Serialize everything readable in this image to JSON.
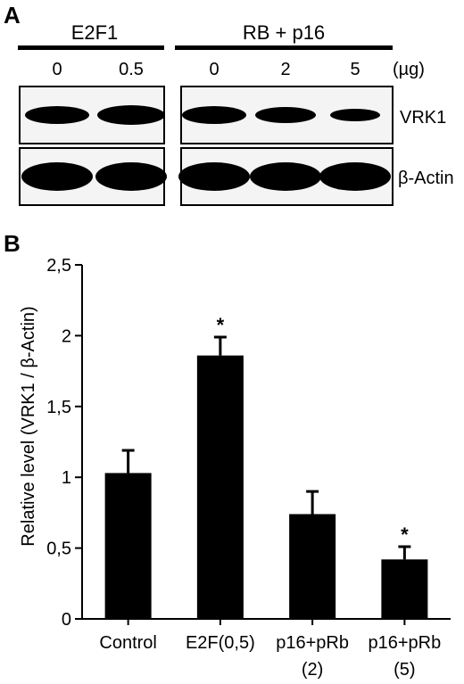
{
  "panel_a": {
    "letter": "A",
    "groups": [
      {
        "label": "E2F1",
        "doses": [
          "0",
          "0.5"
        ]
      },
      {
        "label": "RB + p16",
        "doses": [
          "0",
          "2",
          "5"
        ]
      }
    ],
    "unit": "(µg)",
    "rows": [
      {
        "label": "VRK1",
        "intensity": [
          0.55,
          0.65,
          0.55,
          0.45,
          0.2
        ]
      },
      {
        "label": "β-Actin",
        "intensity": [
          0.95,
          0.95,
          0.95,
          0.95,
          0.95
        ]
      }
    ]
  },
  "panel_b": {
    "letter": "B",
    "chart_data": {
      "type": "bar",
      "categories": [
        "Control",
        "E2F(0,5)",
        "p16+pRb\n(2)",
        "p16+pRb\n(5)"
      ],
      "category_lines": [
        [
          "Control"
        ],
        [
          "E2F(0,5)"
        ],
        [
          "p16+pRb",
          "(2)"
        ],
        [
          "p16+pRb",
          "(5)"
        ]
      ],
      "values": [
        1.03,
        1.86,
        0.74,
        0.42
      ],
      "errors": [
        0.16,
        0.13,
        0.16,
        0.09
      ],
      "significance": [
        "",
        "*",
        "",
        "*"
      ],
      "ylabel": "Relative level (VRK1 / β-Actin)",
      "ylim": [
        0,
        2.5
      ],
      "yticks": [
        0,
        0.5,
        1,
        1.5,
        2,
        2.5
      ],
      "ytick_labels": [
        "0",
        "0,5",
        "1",
        "1,5",
        "2",
        "2,5"
      ],
      "bar_color": "#000000"
    }
  }
}
